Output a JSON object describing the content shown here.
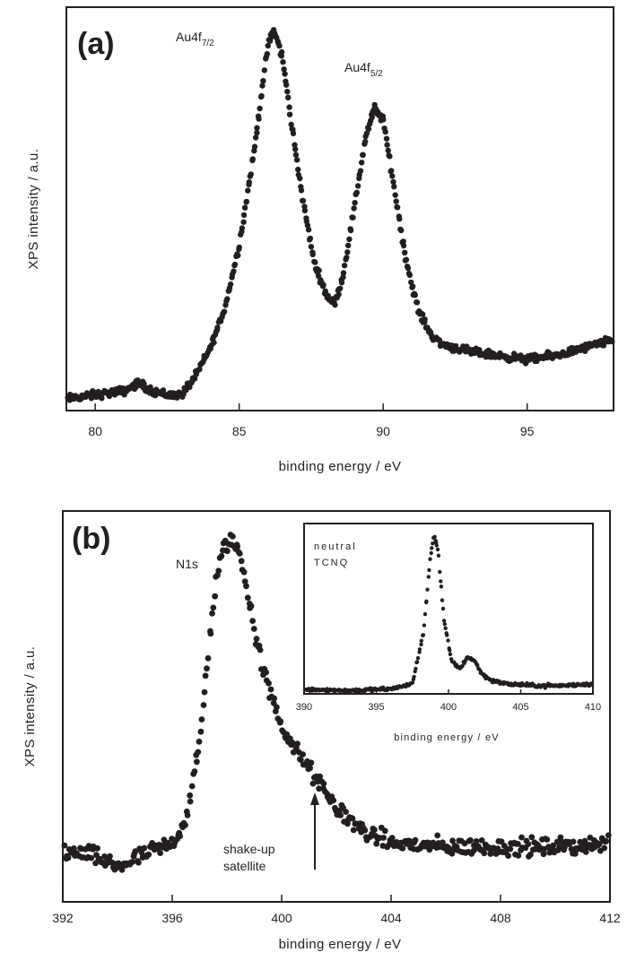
{
  "chart_data": [
    {
      "panel": "(a)",
      "type": "scatter",
      "xlabel": "binding energy / eV",
      "ylabel": "XPS intensity / a.u.",
      "xlim": [
        79,
        98
      ],
      "xticks": [
        "80",
        "85",
        "90",
        "95"
      ],
      "y_tick_labels": false,
      "annotations": [
        {
          "text": "Au4f",
          "sub": "7/2",
          "x": 86.2
        },
        {
          "text": "Au4f",
          "sub": "5/2",
          "x": 89.8
        }
      ],
      "x": [
        79.0,
        80.0,
        81.0,
        81.5,
        82.0,
        82.5,
        83.0,
        83.5,
        84.0,
        84.5,
        85.0,
        85.5,
        85.8,
        86.0,
        86.2,
        86.5,
        86.8,
        87.2,
        87.6,
        88.0,
        88.3,
        88.6,
        89.0,
        89.4,
        89.7,
        90.0,
        90.4,
        90.8,
        91.2,
        91.6,
        92.0,
        93.0,
        94.0,
        95.0,
        96.0,
        97.0,
        98.0
      ],
      "y": [
        0.03,
        0.04,
        0.05,
        0.07,
        0.05,
        0.04,
        0.04,
        0.09,
        0.16,
        0.26,
        0.42,
        0.65,
        0.82,
        0.93,
        0.97,
        0.9,
        0.74,
        0.54,
        0.38,
        0.3,
        0.27,
        0.34,
        0.52,
        0.7,
        0.77,
        0.74,
        0.56,
        0.38,
        0.26,
        0.2,
        0.17,
        0.15,
        0.14,
        0.13,
        0.14,
        0.16,
        0.18
      ]
    },
    {
      "panel": "(b)",
      "type": "scatter",
      "xlabel": "binding energy / eV",
      "ylabel": "XPS intensity / a.u.",
      "xlim": [
        392,
        412
      ],
      "xticks": [
        "392",
        "396",
        "400",
        "404",
        "408",
        "412"
      ],
      "y_tick_labels": false,
      "annotations": [
        {
          "text": "N1s",
          "x": 398.2
        },
        {
          "text": "shake-up",
          "text2": "satellite",
          "x": 401.0,
          "arrow": true
        }
      ],
      "x": [
        392.0,
        393.0,
        394.0,
        395.0,
        396.0,
        396.5,
        397.0,
        397.3,
        397.6,
        397.9,
        398.2,
        398.5,
        398.8,
        399.1,
        399.5,
        400.0,
        400.5,
        401.0,
        401.5,
        402.0,
        403.0,
        404.0,
        406.0,
        408.0,
        410.0,
        412.0
      ],
      "y": [
        0.13,
        0.12,
        0.09,
        0.12,
        0.15,
        0.21,
        0.4,
        0.63,
        0.82,
        0.91,
        0.93,
        0.88,
        0.78,
        0.66,
        0.55,
        0.45,
        0.39,
        0.34,
        0.29,
        0.24,
        0.18,
        0.15,
        0.14,
        0.14,
        0.14,
        0.15
      ]
    },
    {
      "panel": "(b) inset",
      "type": "scatter",
      "title": "neutral TCNQ",
      "title_lines": [
        "neutral",
        "TCNQ"
      ],
      "xlabel": "binding energy / eV",
      "xlim": [
        390,
        410
      ],
      "xticks": [
        "390",
        "395",
        "400",
        "405",
        "410"
      ],
      "x": [
        390.0,
        393.0,
        396.0,
        397.5,
        398.3,
        398.7,
        399.0,
        399.3,
        399.7,
        400.2,
        400.8,
        401.3,
        401.8,
        402.3,
        403.0,
        404.0,
        406.0,
        408.0,
        410.0
      ],
      "y": [
        0.05,
        0.04,
        0.05,
        0.08,
        0.4,
        0.8,
        0.98,
        0.85,
        0.45,
        0.22,
        0.17,
        0.24,
        0.22,
        0.14,
        0.1,
        0.08,
        0.07,
        0.07,
        0.08
      ]
    }
  ]
}
